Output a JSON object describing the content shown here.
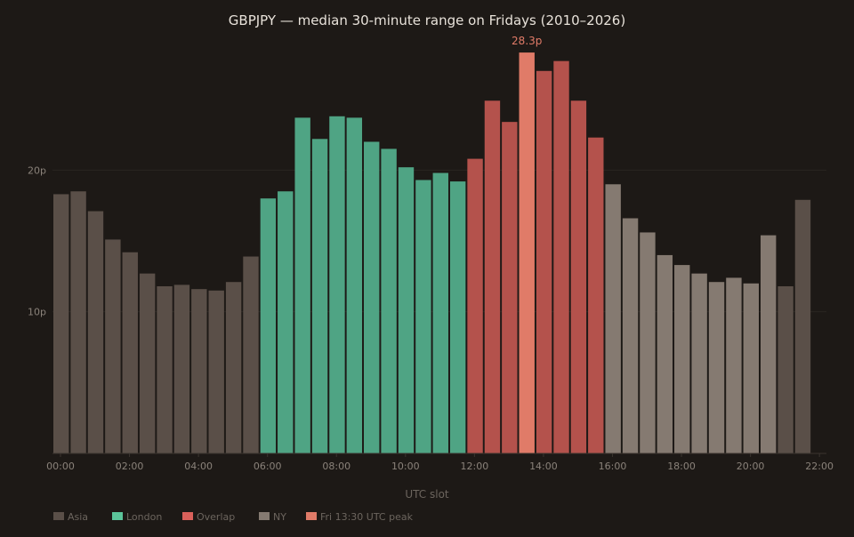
{
  "colors": {
    "background": "#1d1916",
    "title": "#e8e2da",
    "tick_label": "#8a827a",
    "axis_title": "#6c655e",
    "gridline": "#2a2521",
    "baseline": "#3a342f",
    "peak_label": "#e07b68"
  },
  "chart_data": {
    "type": "bar",
    "title": "GBPJPY — median 30-minute range on Fridays (2010–2026)",
    "xlabel": "UTC slot",
    "ylabel": "",
    "ylim": [
      0,
      30
    ],
    "y_ticks": [
      {
        "value": 10,
        "label": "10p"
      },
      {
        "value": 20,
        "label": "20p"
      }
    ],
    "x_ticks": [
      "00:00",
      "02:00",
      "04:00",
      "06:00",
      "08:00",
      "10:00",
      "12:00",
      "14:00",
      "16:00",
      "18:00",
      "20:00",
      "22:00"
    ],
    "grid": true,
    "legend_position": "bottom-left",
    "legend": [
      {
        "key": "asia",
        "label": "Asia",
        "color": "#5a4f48"
      },
      {
        "key": "london",
        "label": "London",
        "color": "#5bc49a"
      },
      {
        "key": "overlap",
        "label": "Overlap",
        "color": "#d9605a"
      },
      {
        "key": "ny",
        "label": "NY",
        "color": "#857a71"
      },
      {
        "key": "peak",
        "label": "Fri 13:30 UTC peak",
        "color": "#e07b68"
      }
    ],
    "segment_colors": {
      "asia": "#5a4f48",
      "london": "#4fa484",
      "overlap": "#b4524c",
      "ny": "#857a71",
      "peak": "#e07b68"
    },
    "peak_label": "28.3p",
    "bars": [
      {
        "slot": "00:00",
        "value": 18.3,
        "segment": "asia"
      },
      {
        "slot": "00:30",
        "value": 18.5,
        "segment": "asia"
      },
      {
        "slot": "01:00",
        "value": 17.1,
        "segment": "asia"
      },
      {
        "slot": "01:30",
        "value": 15.1,
        "segment": "asia"
      },
      {
        "slot": "02:00",
        "value": 14.2,
        "segment": "asia"
      },
      {
        "slot": "02:30",
        "value": 12.7,
        "segment": "asia"
      },
      {
        "slot": "03:00",
        "value": 11.8,
        "segment": "asia"
      },
      {
        "slot": "03:30",
        "value": 11.9,
        "segment": "asia"
      },
      {
        "slot": "04:00",
        "value": 11.6,
        "segment": "asia"
      },
      {
        "slot": "04:30",
        "value": 11.5,
        "segment": "asia"
      },
      {
        "slot": "05:00",
        "value": 12.1,
        "segment": "asia"
      },
      {
        "slot": "05:30",
        "value": 13.9,
        "segment": "asia"
      },
      {
        "slot": "06:00",
        "value": 18.0,
        "segment": "london"
      },
      {
        "slot": "06:30",
        "value": 18.5,
        "segment": "london"
      },
      {
        "slot": "07:00",
        "value": 23.7,
        "segment": "london"
      },
      {
        "slot": "07:30",
        "value": 22.2,
        "segment": "london"
      },
      {
        "slot": "08:00",
        "value": 23.8,
        "segment": "london"
      },
      {
        "slot": "08:30",
        "value": 23.7,
        "segment": "london"
      },
      {
        "slot": "09:00",
        "value": 22.0,
        "segment": "london"
      },
      {
        "slot": "09:30",
        "value": 21.5,
        "segment": "london"
      },
      {
        "slot": "10:00",
        "value": 20.2,
        "segment": "london"
      },
      {
        "slot": "10:30",
        "value": 19.3,
        "segment": "london"
      },
      {
        "slot": "11:00",
        "value": 19.8,
        "segment": "london"
      },
      {
        "slot": "11:30",
        "value": 19.2,
        "segment": "london"
      },
      {
        "slot": "12:00",
        "value": 20.8,
        "segment": "overlap"
      },
      {
        "slot": "12:30",
        "value": 24.9,
        "segment": "overlap"
      },
      {
        "slot": "13:00",
        "value": 23.4,
        "segment": "overlap"
      },
      {
        "slot": "13:30",
        "value": 28.3,
        "segment": "peak"
      },
      {
        "slot": "14:00",
        "value": 27.0,
        "segment": "overlap"
      },
      {
        "slot": "14:30",
        "value": 27.7,
        "segment": "overlap"
      },
      {
        "slot": "15:00",
        "value": 24.9,
        "segment": "overlap"
      },
      {
        "slot": "15:30",
        "value": 22.3,
        "segment": "overlap"
      },
      {
        "slot": "16:00",
        "value": 19.0,
        "segment": "ny"
      },
      {
        "slot": "16:30",
        "value": 16.6,
        "segment": "ny"
      },
      {
        "slot": "17:00",
        "value": 15.6,
        "segment": "ny"
      },
      {
        "slot": "17:30",
        "value": 14.0,
        "segment": "ny"
      },
      {
        "slot": "18:00",
        "value": 13.3,
        "segment": "ny"
      },
      {
        "slot": "18:30",
        "value": 12.7,
        "segment": "ny"
      },
      {
        "slot": "19:00",
        "value": 12.1,
        "segment": "ny"
      },
      {
        "slot": "19:30",
        "value": 12.4,
        "segment": "ny"
      },
      {
        "slot": "20:00",
        "value": 12.0,
        "segment": "ny"
      },
      {
        "slot": "20:30",
        "value": 15.4,
        "segment": "ny"
      },
      {
        "slot": "21:00",
        "value": 11.8,
        "segment": "asia"
      },
      {
        "slot": "21:30",
        "value": 17.9,
        "segment": "asia"
      }
    ]
  }
}
